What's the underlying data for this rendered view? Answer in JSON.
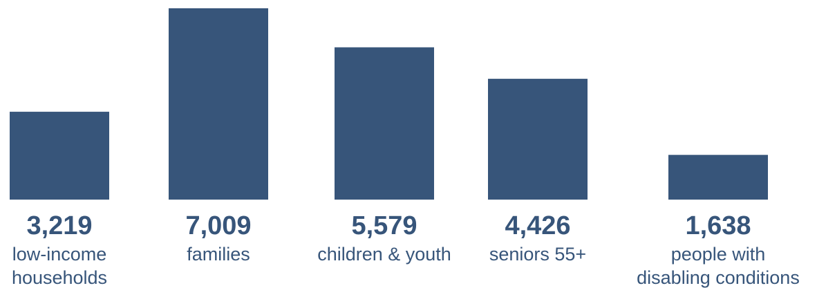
{
  "chart_data": {
    "type": "bar",
    "title": "",
    "xlabel": "",
    "ylabel": "",
    "grid": false,
    "legend": "none",
    "categories": [
      [
        "low-income",
        "households"
      ],
      [
        "families"
      ],
      [
        "children & youth"
      ],
      [
        "seniors 55+"
      ],
      [
        "people with",
        "disabling conditions"
      ]
    ],
    "values": [
      3219,
      7009,
      5579,
      4426,
      1638
    ],
    "value_labels": [
      "3,219",
      "7,009",
      "5,579",
      "4,426",
      "1,638"
    ],
    "ylim": [
      0,
      7009
    ],
    "colors": {
      "bar": "#37557a",
      "text": "#37557a"
    }
  }
}
